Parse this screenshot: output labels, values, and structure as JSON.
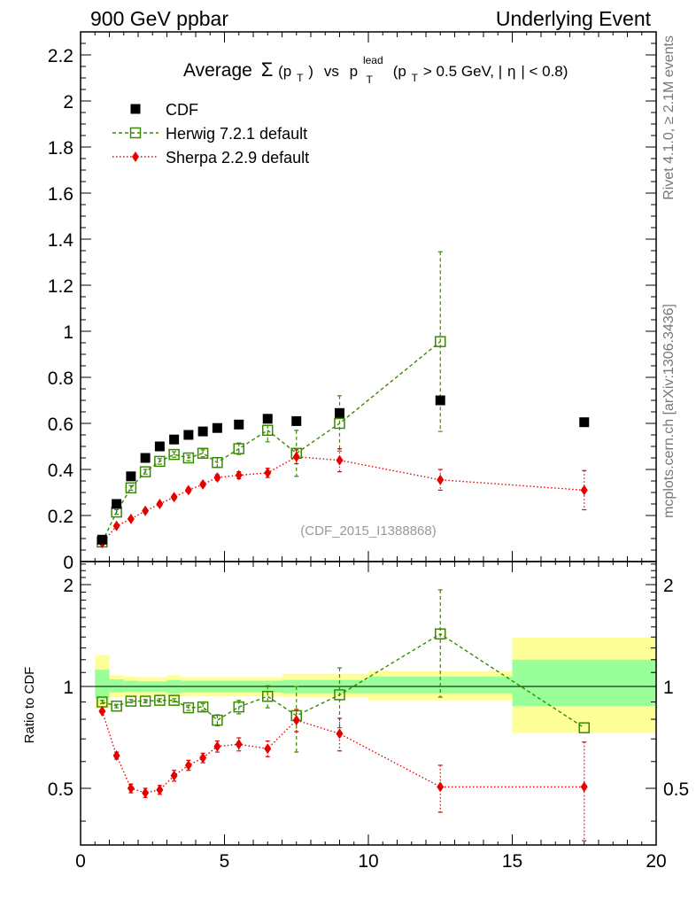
{
  "header": {
    "left": "900 GeV ppbar",
    "right": "Underlying Event"
  },
  "side_labels": {
    "rivet": "Rivet 4.1.0, ≥ 2.1M events",
    "mcplots": "mcplots.cern.ch [arXiv:1306.3436]"
  },
  "title_parts": {
    "prefix": "Average",
    "sigma": "Σ",
    "pt_open": "(p",
    "t_sub": "T",
    "pt_close": ")",
    "vs": "vs",
    "p": "p",
    "lead_sup": "lead",
    "cut_open": "(p",
    "cut_rest": " > 0.5 GeV, |",
    "eta": "η",
    "cut_end": "| < 0.8)"
  },
  "watermark": "(CDF_2015_I1388868)",
  "ratio_ylabel": "Ratio to CDF",
  "colors": {
    "data": "#000000",
    "herwig": "#3a8a00",
    "sherpa": "#e60000",
    "band_inner": "#99ff99",
    "band_outer": "#ffff99"
  },
  "chart_data": {
    "type": "scatter",
    "xlim": [
      0,
      20
    ],
    "main_ylim": [
      0,
      2.3
    ],
    "ratio_ylim": [
      0.34,
      2.34
    ],
    "x_ticks": [
      0,
      5,
      10,
      15,
      20
    ],
    "main_y_ticks": [
      0,
      0.2,
      0.4,
      0.6,
      0.8,
      1,
      1.2,
      1.4,
      1.6,
      1.8,
      2,
      2.2
    ],
    "ratio_y_ticks": [
      0.5,
      1,
      2
    ],
    "series": [
      {
        "name": "CDF",
        "key": "data",
        "style": "square-filled",
        "x": [
          0.75,
          1.25,
          1.75,
          2.25,
          2.75,
          3.25,
          3.75,
          4.25,
          4.75,
          5.5,
          6.5,
          7.5,
          9.0,
          12.5,
          17.5
        ],
        "y": [
          0.095,
          0.25,
          0.37,
          0.45,
          0.5,
          0.53,
          0.55,
          0.565,
          0.58,
          0.595,
          0.62,
          0.61,
          0.645,
          0.7,
          0.605
        ],
        "err": [
          0,
          0,
          0,
          0,
          0,
          0,
          0,
          0,
          0,
          0,
          0,
          0,
          0,
          0,
          0
        ]
      },
      {
        "name": "Herwig 7.2.1 default",
        "key": "herwig",
        "style": "square-open-dashed",
        "x": [
          0.75,
          1.25,
          1.75,
          2.25,
          2.75,
          3.25,
          3.75,
          4.25,
          4.75,
          5.5,
          6.5,
          7.5,
          9.0,
          12.5,
          17.5
        ],
        "y": [
          0.085,
          0.215,
          0.32,
          0.39,
          0.435,
          0.465,
          0.45,
          0.47,
          0.43,
          0.49,
          0.57,
          0.47,
          0.6,
          0.955,
          null
        ],
        "err": [
          0.005,
          0.01,
          0.01,
          0.01,
          0.012,
          0.012,
          0.012,
          0.015,
          0.02,
          0.025,
          0.05,
          0.1,
          0.12,
          0.39,
          0
        ]
      },
      {
        "name": "Sherpa 2.2.9 default",
        "key": "sherpa",
        "style": "diamond-filled-dotted",
        "x": [
          0.75,
          1.25,
          1.75,
          2.25,
          2.75,
          3.25,
          3.75,
          4.25,
          4.75,
          5.5,
          6.5,
          7.5,
          9.0,
          12.5,
          17.5
        ],
        "y": [
          0.08,
          0.155,
          0.185,
          0.22,
          0.25,
          0.28,
          0.31,
          0.335,
          0.365,
          0.375,
          0.385,
          0.455,
          0.44,
          0.355,
          0.31
        ],
        "err": [
          0.004,
          0.006,
          0.007,
          0.008,
          0.008,
          0.009,
          0.01,
          0.01,
          0.012,
          0.015,
          0.02,
          0.03,
          0.05,
          0.045,
          0.085
        ]
      }
    ],
    "ratio": {
      "herwig": {
        "x": [
          0.75,
          1.25,
          1.75,
          2.25,
          2.75,
          3.25,
          3.75,
          4.25,
          4.75,
          5.5,
          6.5,
          7.5,
          9.0,
          12.5,
          17.5
        ],
        "y": [
          0.9,
          0.875,
          0.905,
          0.905,
          0.91,
          0.91,
          0.865,
          0.87,
          0.795,
          0.87,
          0.935,
          0.82,
          0.945,
          1.43,
          0.755
        ],
        "err": [
          0.01,
          0.01,
          0.01,
          0.01,
          0.01,
          0.01,
          0.015,
          0.02,
          0.03,
          0.04,
          0.07,
          0.18,
          0.19,
          0.5,
          0
        ]
      },
      "sherpa": {
        "x": [
          0.75,
          1.25,
          1.75,
          2.25,
          2.75,
          3.25,
          3.75,
          4.25,
          4.75,
          5.5,
          6.5,
          7.5,
          9.0,
          12.5,
          17.5
        ],
        "y": [
          0.845,
          0.625,
          0.5,
          0.485,
          0.495,
          0.545,
          0.585,
          0.615,
          0.665,
          0.675,
          0.655,
          0.795,
          0.725,
          0.505,
          0.505
        ],
        "err": [
          0.01,
          0.015,
          0.015,
          0.015,
          0.015,
          0.02,
          0.02,
          0.02,
          0.025,
          0.03,
          0.035,
          0.06,
          0.08,
          0.08,
          0.18
        ]
      },
      "bands": [
        {
          "x0": 0.5,
          "x1": 1.0,
          "inner": [
            0.92,
            1.12
          ],
          "outer": [
            0.86,
            1.24
          ]
        },
        {
          "x0": 1.0,
          "x1": 1.5,
          "inner": [
            0.96,
            1.05
          ],
          "outer": [
            0.93,
            1.08
          ]
        },
        {
          "x0": 1.5,
          "x1": 2.0,
          "inner": [
            0.965,
            1.04
          ],
          "outer": [
            0.935,
            1.07
          ]
        },
        {
          "x0": 2.0,
          "x1": 3.0,
          "inner": [
            0.965,
            1.035
          ],
          "outer": [
            0.94,
            1.065
          ]
        },
        {
          "x0": 3.0,
          "x1": 3.5,
          "inner": [
            0.955,
            1.045
          ],
          "outer": [
            0.93,
            1.08
          ]
        },
        {
          "x0": 3.5,
          "x1": 7.0,
          "inner": [
            0.96,
            1.04
          ],
          "outer": [
            0.935,
            1.065
          ]
        },
        {
          "x0": 7.0,
          "x1": 10.0,
          "inner": [
            0.955,
            1.045
          ],
          "outer": [
            0.93,
            1.09
          ]
        },
        {
          "x0": 10.0,
          "x1": 15.0,
          "inner": [
            0.955,
            1.07
          ],
          "outer": [
            0.91,
            1.11
          ]
        },
        {
          "x0": 15.0,
          "x1": 20.0,
          "inner": [
            0.875,
            1.2
          ],
          "outer": [
            0.73,
            1.395
          ]
        }
      ]
    }
  }
}
